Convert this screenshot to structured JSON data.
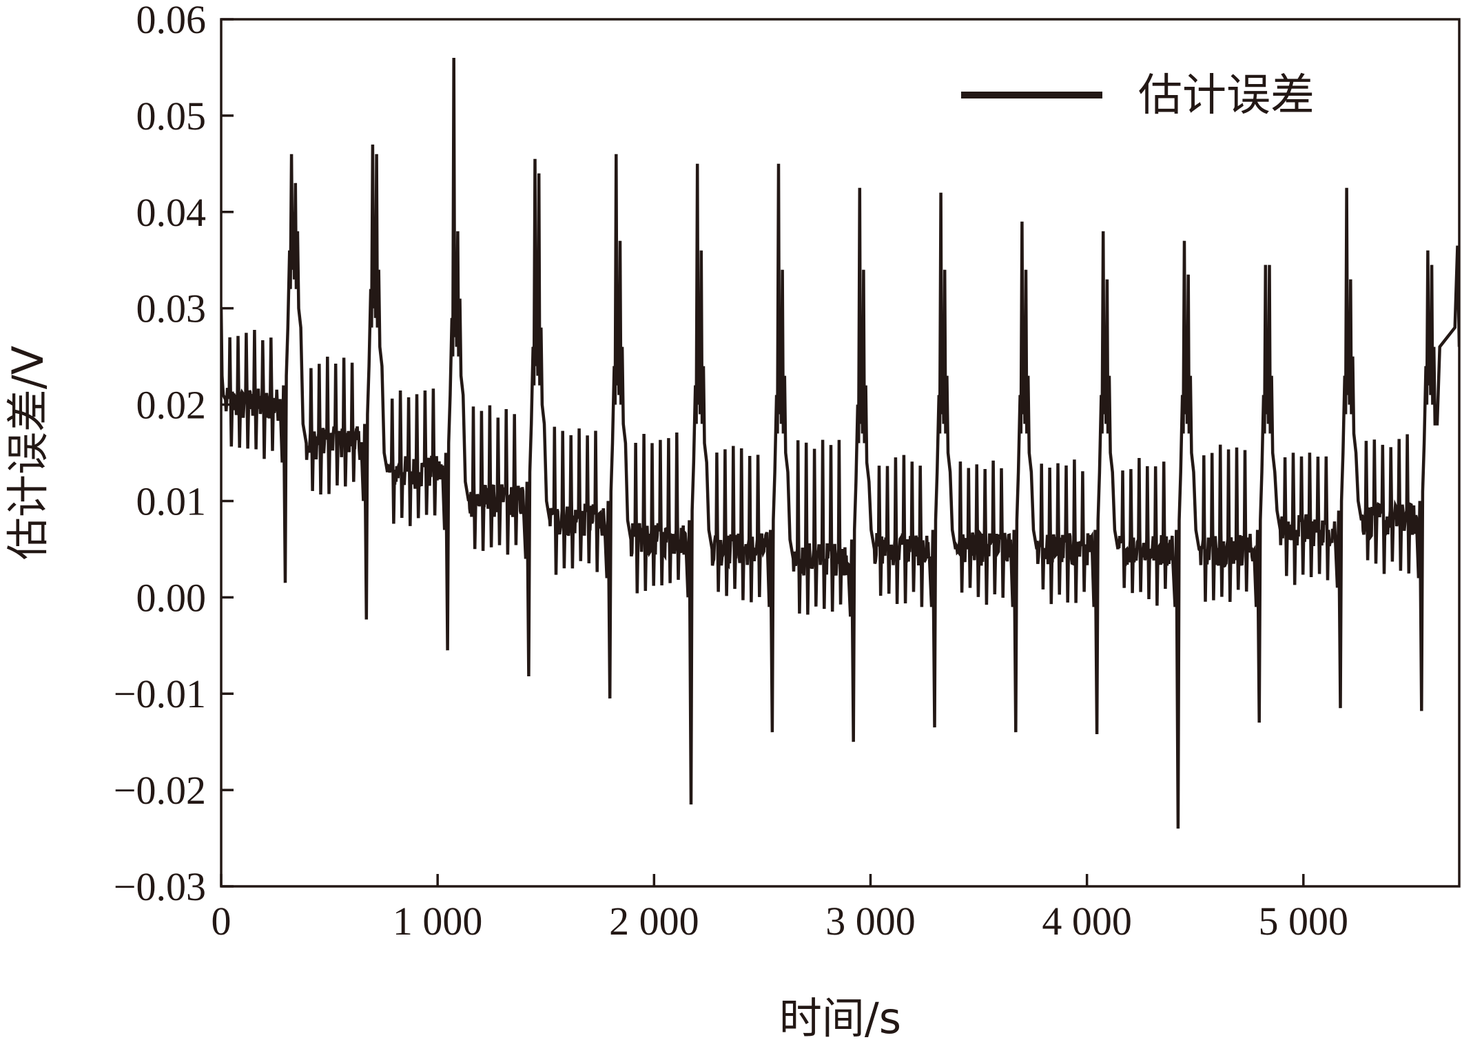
{
  "chart_data": {
    "type": "line",
    "title": "",
    "xlabel": "时间/s",
    "ylabel": "估计误差/V",
    "xlim": [
      0,
      5720
    ],
    "ylim": [
      -0.03,
      0.06
    ],
    "x_ticks": [
      0,
      1000,
      2000,
      3000,
      4000,
      5000
    ],
    "x_tick_labels": [
      "0",
      "1 000",
      "2 000",
      "3 000",
      "4 000",
      "5 000"
    ],
    "y_ticks": [
      -0.03,
      -0.02,
      -0.01,
      0.0,
      0.01,
      0.02,
      0.03,
      0.04,
      0.05,
      0.06
    ],
    "y_tick_labels": [
      "−0.03",
      "−0.02",
      "−0.01",
      "0.00",
      "0.01",
      "0.02",
      "0.03",
      "0.04",
      "0.05",
      "0.06"
    ],
    "grid": false,
    "legend_position": "top-right",
    "colors": {
      "line": "#231815",
      "axis": "#231815"
    },
    "series": [
      {
        "name": "估计误差",
        "cycle_length_s": 375,
        "cycles": [
          {
            "start": 20,
            "baseline": 0.02,
            "pulse_peak": 0.028,
            "max_peak": 0.046,
            "second_peak": 0.043,
            "min_dip": 0.0015
          },
          {
            "start": 395,
            "baseline": 0.016,
            "pulse_peak": 0.025,
            "max_peak": 0.047,
            "second_peak": 0.046,
            "min_dip": -0.0023
          },
          {
            "start": 770,
            "baseline": 0.013,
            "pulse_peak": 0.022,
            "max_peak": 0.056,
            "second_peak": 0.038,
            "min_dip": -0.0055
          },
          {
            "start": 1145,
            "baseline": 0.01,
            "pulse_peak": 0.02,
            "max_peak": 0.0455,
            "second_peak": 0.044,
            "min_dip": -0.0082
          },
          {
            "start": 1520,
            "baseline": 0.008,
            "pulse_peak": 0.018,
            "max_peak": 0.046,
            "second_peak": 0.037,
            "min_dip": -0.0105
          },
          {
            "start": 1895,
            "baseline": 0.006,
            "pulse_peak": 0.0175,
            "max_peak": 0.045,
            "second_peak": 0.036,
            "min_dip": -0.0215
          },
          {
            "start": 2270,
            "baseline": 0.005,
            "pulse_peak": 0.016,
            "max_peak": 0.045,
            "second_peak": 0.034,
            "min_dip": -0.014
          },
          {
            "start": 2645,
            "baseline": 0.004,
            "pulse_peak": 0.0165,
            "max_peak": 0.0425,
            "second_peak": 0.034,
            "min_dip": -0.015
          },
          {
            "start": 3020,
            "baseline": 0.005,
            "pulse_peak": 0.015,
            "max_peak": 0.042,
            "second_peak": 0.034,
            "min_dip": -0.0135
          },
          {
            "start": 3395,
            "baseline": 0.005,
            "pulse_peak": 0.0145,
            "max_peak": 0.039,
            "second_peak": 0.034,
            "min_dip": -0.014
          },
          {
            "start": 3770,
            "baseline": 0.005,
            "pulse_peak": 0.0145,
            "max_peak": 0.038,
            "second_peak": 0.033,
            "min_dip": -0.0142
          },
          {
            "start": 4145,
            "baseline": 0.005,
            "pulse_peak": 0.0145,
            "max_peak": 0.037,
            "second_peak": 0.0335,
            "min_dip": -0.024
          },
          {
            "start": 4520,
            "baseline": 0.005,
            "pulse_peak": 0.016,
            "max_peak": 0.0345,
            "second_peak": 0.0345,
            "min_dip": -0.013
          },
          {
            "start": 4895,
            "baseline": 0.007,
            "pulse_peak": 0.016,
            "max_peak": 0.0425,
            "second_peak": 0.033,
            "min_dip": -0.0115
          },
          {
            "start": 5270,
            "baseline": 0.008,
            "pulse_peak": 0.017,
            "max_peak": 0.036,
            "second_peak": 0.0345,
            "min_dip": -0.0118
          }
        ]
      }
    ]
  }
}
